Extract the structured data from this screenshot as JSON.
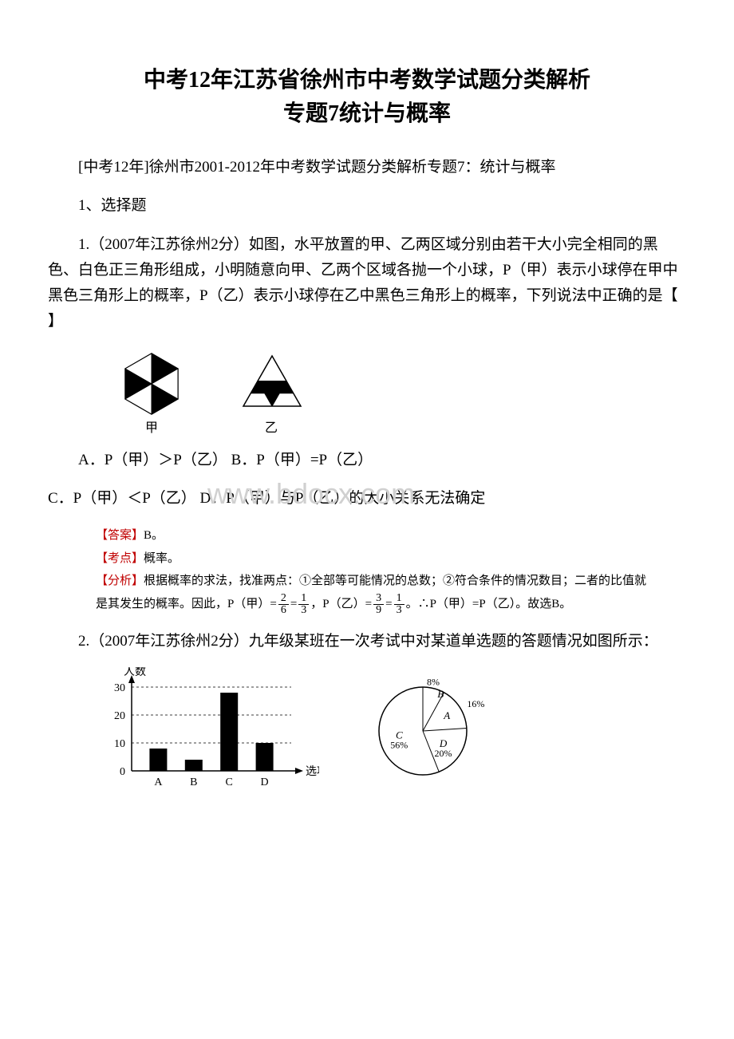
{
  "title_line1": "中考12年江苏省徐州市中考数学试题分类解析",
  "title_line2": "专题7统计与概率",
  "intro": "[中考12年]徐州市2001-2012年中考数学试题分类解析专题7：统计与概率",
  "section1": "1、选择题",
  "q1_text": "1.（2007年江苏徐州2分）如图，水平放置的甲、乙两区域分别由若干大小完全相同的黑色、白色正三角形组成，小明随意向甲、乙两个区域各抛一个小球，P（甲）表示小球停在甲中黑色三角形上的概率，P（乙）表示小球停在乙中黑色三角形上的概率，下列说法中正确的是【  】",
  "q1_fig": {
    "label_jia": "甲",
    "label_yi": "乙"
  },
  "q1_opts_ab": "A．P（甲）＞P（乙）  B．P（甲）=P（乙）",
  "q1_opts_cd": "C．P（甲）＜P（乙）  D．P（甲）与P（乙）的大小关系无法确定",
  "solution1": {
    "answer_label": "【答案】",
    "answer_text": "B。",
    "kaodian_label": "【考点】",
    "kaodian_text": "概率。",
    "fenxi_label": "【分析】",
    "fenxi_text1": "根据概率的求法，找准两点：①全部等可能情况的总数；②符合条件的情况数目；二者的比值就",
    "fenxi_text2a": "是其发生的概率。因此，P（甲）=",
    "frac1_num": "2",
    "frac1_den": "6",
    "eq1": "=",
    "frac2_num": "1",
    "frac2_den": "3",
    "mid": "，P（乙）=",
    "frac3_num": "3",
    "frac3_den": "9",
    "eq2": "=",
    "frac4_num": "1",
    "frac4_den": "3",
    "end": "。∴P（甲）=P（乙）。故选B。"
  },
  "q2_text": "2.（2007年江苏徐州2分）九年级某班在一次考试中对某道单选题的答题情况如图所示：",
  "bar_chart": {
    "ylabel": "人数",
    "xlabel": "选项",
    "yticks": [
      "0",
      "10",
      "20",
      "30"
    ],
    "categories": [
      "A",
      "B",
      "C",
      "D"
    ],
    "values": [
      8,
      4,
      28,
      10
    ],
    "ymax": 30,
    "bar_color": "#000000",
    "axis_color": "#000000"
  },
  "pie_chart": {
    "slices": [
      {
        "label": "B",
        "pct": "8%",
        "value": 8
      },
      {
        "label": "A",
        "pct": "16%",
        "value": 16
      },
      {
        "label": "D",
        "pct": "20%",
        "value": 20
      },
      {
        "label": "C",
        "pct": "56%",
        "value": 56
      }
    ],
    "fill": "#ffffff",
    "stroke": "#000000"
  },
  "watermark_text": "www.bdocx.com"
}
